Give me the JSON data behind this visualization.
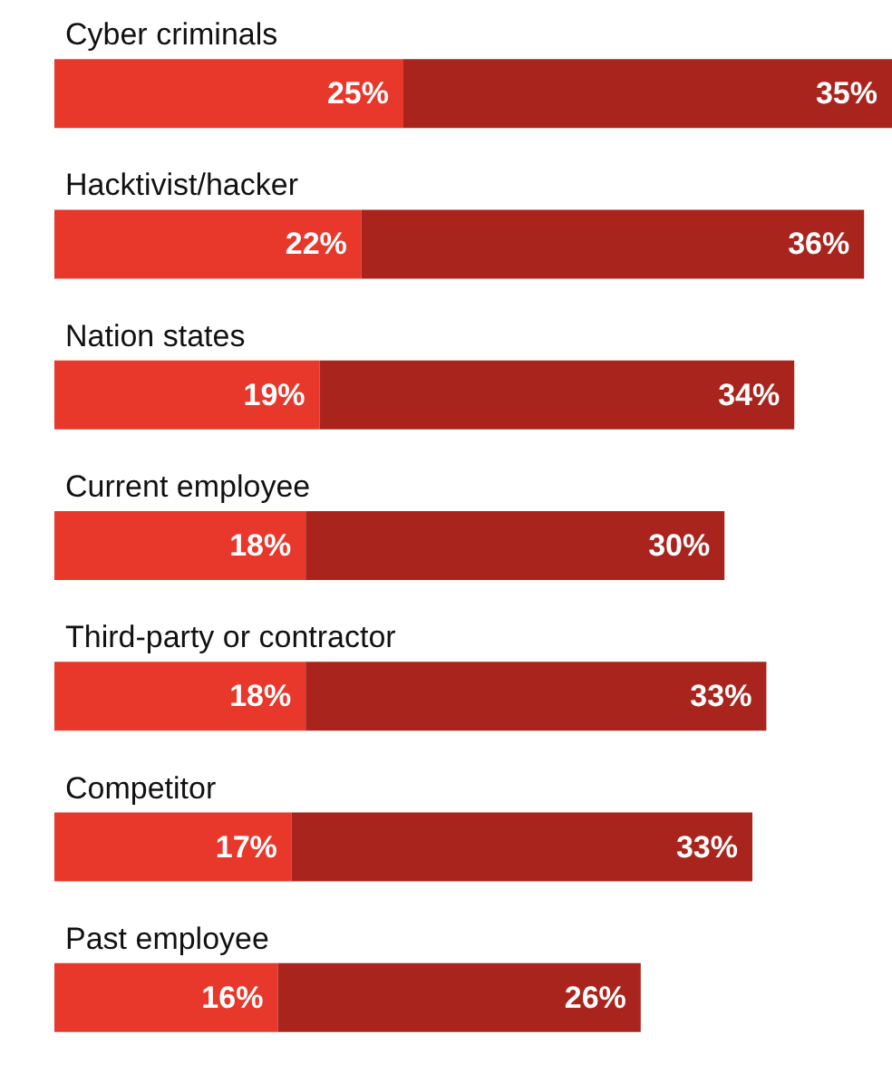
{
  "chart_data": {
    "type": "bar",
    "orientation": "horizontal",
    "stacked": true,
    "categories": [
      "Cyber criminals",
      "Hacktivist/hacker",
      "Nation states",
      "Current employee",
      "Third-party or contractor",
      "Competitor",
      "Past employee"
    ],
    "series": [
      {
        "color": "#e8372b",
        "values": [
          25,
          22,
          19,
          18,
          18,
          17,
          16
        ],
        "value_labels": [
          "25%",
          "22%",
          "19%",
          "18%",
          "18%",
          "17%",
          "16%"
        ]
      },
      {
        "color": "#a9241d",
        "values": [
          35,
          36,
          34,
          30,
          33,
          33,
          26
        ],
        "value_labels": [
          "35%",
          "36%",
          "34%",
          "30%",
          "33%",
          "33%",
          "26%"
        ]
      }
    ]
  }
}
